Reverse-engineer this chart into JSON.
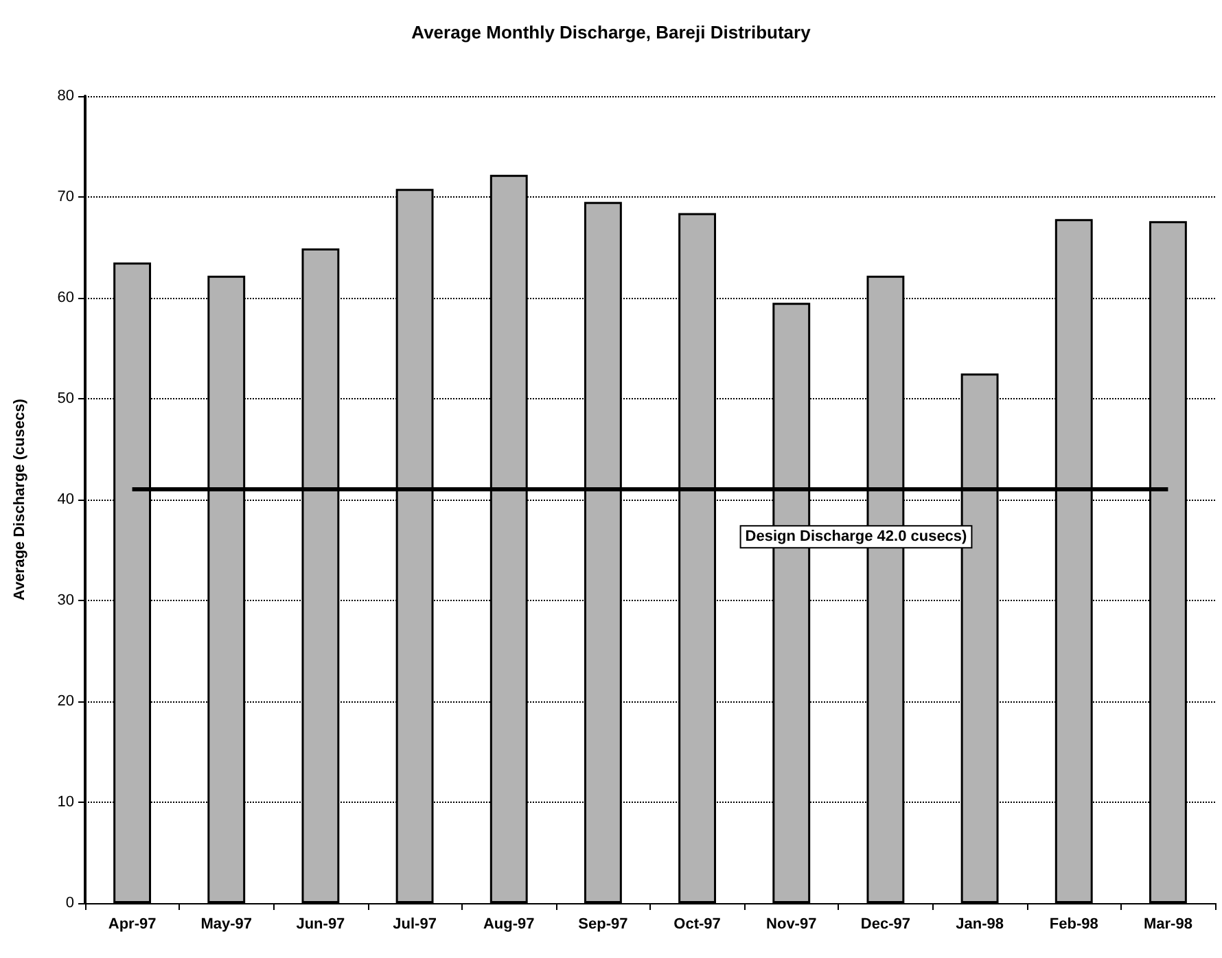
{
  "chart_data": {
    "type": "bar",
    "title": "Average Monthly Discharge, Bareji Distributary",
    "ylabel": "Average Discharge (cusecs)",
    "categories": [
      "Apr-97",
      "May-97",
      "Jun-97",
      "Jul-97",
      "Aug-97",
      "Sep-97",
      "Oct-97",
      "Nov-97",
      "Dec-97",
      "Jan-98",
      "Feb-98",
      "Mar-98"
    ],
    "values": [
      63.5,
      62.2,
      64.9,
      70.8,
      72.2,
      69.5,
      68.4,
      59.5,
      62.2,
      52.5,
      67.8,
      67.6
    ],
    "color": "#b3b3b3",
    "ylim": [
      0,
      80
    ],
    "yticks": [
      0,
      10,
      20,
      30,
      40,
      50,
      60,
      70,
      80
    ],
    "grid": "y",
    "ref_lines": [
      {
        "axis": "y",
        "value": 41,
        "label": "Design Discharge 42.0 cusecs)",
        "color": "#000000",
        "line_style": "solid"
      }
    ]
  }
}
